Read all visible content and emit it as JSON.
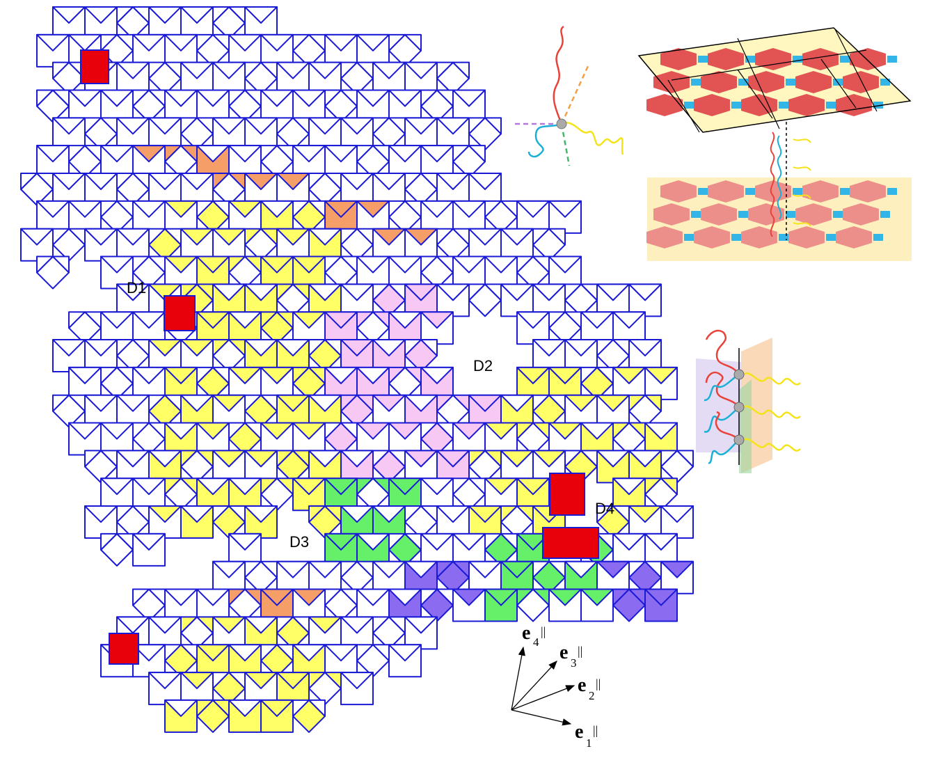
{
  "tiling": {
    "edge_color": "#1a1ad6",
    "fills": {
      "white": "#ffffff",
      "yellow": "#ffff66",
      "orange": "#f59e68",
      "green": "#66f06a",
      "red": "#e8000b",
      "purple": "#8b6cf0",
      "pink": "#f7c8f4"
    }
  },
  "defect_labels": [
    "D1",
    "D2",
    "D3",
    "D4"
  ],
  "basis_vectors": [
    {
      "name": "e",
      "index": "4",
      "sup": "||"
    },
    {
      "name": "e",
      "index": "3",
      "sup": "||"
    },
    {
      "name": "e",
      "index": "2",
      "sup": "||"
    },
    {
      "name": "e",
      "index": "1",
      "sup": "||"
    }
  ],
  "insets": {
    "chain_colors": {
      "red": "#e8423a",
      "yellow": "#f5e31a",
      "cyan": "#1ab0d6",
      "orange": "#f2a043",
      "violet": "#b27ad8",
      "green": "#3fb86a"
    },
    "layer_colors": {
      "red": "#e25454",
      "yellow": "#f8e34a",
      "blue": "#33b5e8"
    }
  }
}
